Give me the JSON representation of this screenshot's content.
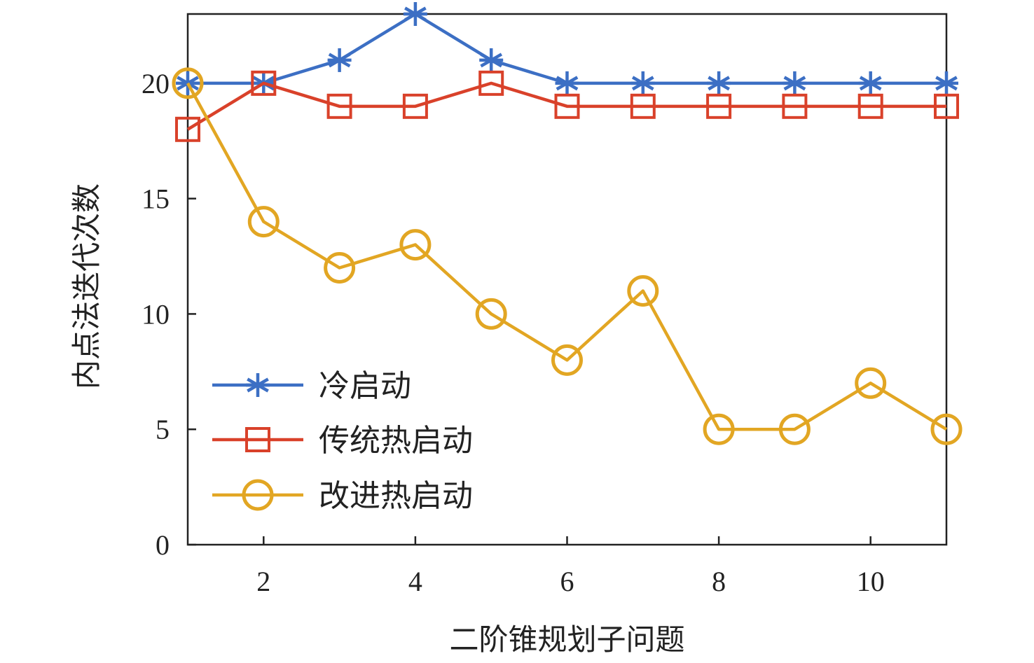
{
  "chart_data": {
    "type": "line",
    "title": "",
    "xlabel": "二阶锥规划子问题",
    "ylabel": "内点法迭代次数",
    "x": [
      1,
      2,
      3,
      4,
      5,
      6,
      7,
      8,
      9,
      10,
      11
    ],
    "xlim": [
      1,
      11
    ],
    "ylim": [
      0,
      23
    ],
    "x_ticks": [
      2,
      4,
      6,
      8,
      10
    ],
    "y_ticks": [
      0,
      5,
      10,
      15,
      20
    ],
    "grid": false,
    "legend_position": "bottom-left",
    "series": [
      {
        "name": "冷启动",
        "color": "#3c6fc4",
        "marker": "asterisk",
        "values": [
          20,
          20,
          21,
          23,
          21,
          20,
          20,
          20,
          20,
          20,
          20
        ]
      },
      {
        "name": "传统热启动",
        "color": "#d9412a",
        "marker": "square",
        "values": [
          18,
          20,
          19,
          19,
          20,
          19,
          19,
          19,
          19,
          19,
          19
        ]
      },
      {
        "name": "改进热启动",
        "color": "#e2a623",
        "marker": "circle",
        "values": [
          20,
          14,
          12,
          13,
          10,
          8,
          11,
          5,
          5,
          7,
          5
        ]
      }
    ]
  }
}
